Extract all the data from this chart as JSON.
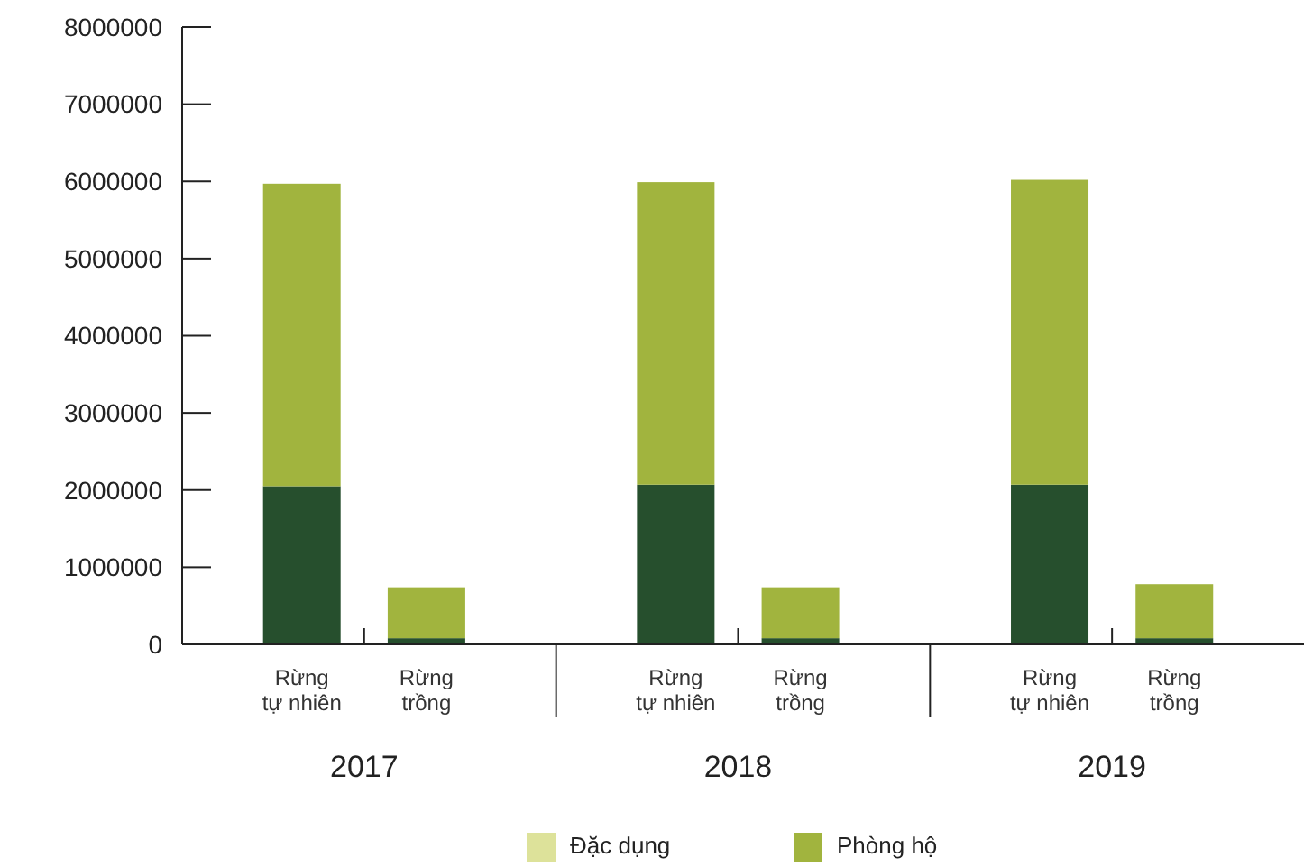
{
  "chart_data": {
    "type": "bar",
    "stacked": true,
    "categories": [
      "Rừng tự nhiên",
      "Rừng trồng",
      null,
      "Rừng tự nhiên",
      "Rừng trồng",
      null,
      "Rừng tự nhiên",
      "Rừng trồng",
      null
    ],
    "series": [
      {
        "color": "#264f2d",
        "values": [
          2050000,
          80000,
          null,
          2070000,
          80000,
          null,
          2070000,
          80000,
          null
        ]
      },
      {
        "name": "Phòng hộ",
        "color": "#a1b43e",
        "values": [
          3920000,
          660000,
          null,
          3920000,
          660000,
          null,
          3950000,
          700000,
          null
        ]
      },
      {
        "name": "Đặc dụng",
        "color": "#dde29a",
        "values": [
          null,
          null,
          null,
          null,
          null,
          null,
          null,
          null,
          null
        ]
      }
    ],
    "annotations": [
      "2017",
      "2018",
      "2019"
    ],
    "ylim": [
      0,
      8000000
    ],
    "yticks": [
      0,
      1000000,
      2000000,
      3000000,
      4000000,
      5000000,
      6000000,
      7000000,
      8000000
    ],
    "grid": false,
    "legend": "bottom"
  }
}
